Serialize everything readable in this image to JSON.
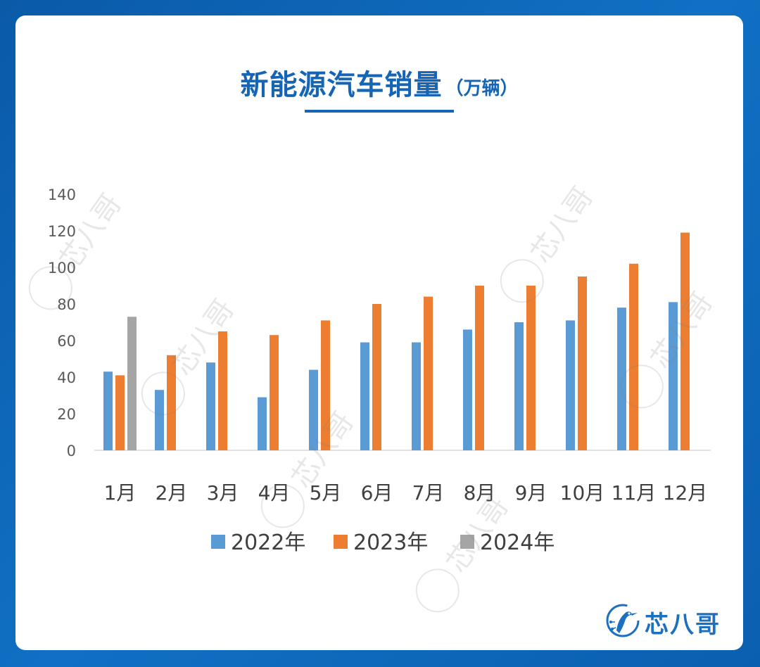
{
  "title": {
    "main": "新能源汽车销量",
    "unit": "（万辆）"
  },
  "brand": {
    "name": "芯八哥",
    "icon": "kingfisher-bird-icon",
    "color": "#1d6fc0"
  },
  "watermark": {
    "text": "芯八哥"
  },
  "colors": {
    "background": "#0d63b5",
    "title": "#1565b4",
    "series_2022": "#5b9bd5",
    "series_2023": "#ed7d31",
    "series_2024": "#a5a5a5"
  },
  "chart_data": {
    "type": "bar",
    "title": "",
    "xlabel": "",
    "ylabel": "",
    "ylim": [
      0,
      140
    ],
    "yticks": [
      0,
      20,
      40,
      60,
      80,
      100,
      120,
      140
    ],
    "grid": false,
    "legend_position": "bottom",
    "categories": [
      "1月",
      "2月",
      "3月",
      "4月",
      "5月",
      "6月",
      "7月",
      "8月",
      "9月",
      "10月",
      "11月",
      "12月"
    ],
    "series": [
      {
        "name": "2022年",
        "color": "#5b9bd5",
        "values": [
          43,
          33,
          48,
          29,
          44,
          59,
          59,
          66,
          70,
          71,
          78,
          81
        ]
      },
      {
        "name": "2023年",
        "color": "#ed7d31",
        "values": [
          41,
          52,
          65,
          63,
          71,
          80,
          84,
          90,
          90,
          95,
          102,
          119
        ]
      },
      {
        "name": "2024年",
        "color": "#a5a5a5",
        "values": [
          73,
          null,
          null,
          null,
          null,
          null,
          null,
          null,
          null,
          null,
          null,
          null
        ]
      }
    ]
  }
}
